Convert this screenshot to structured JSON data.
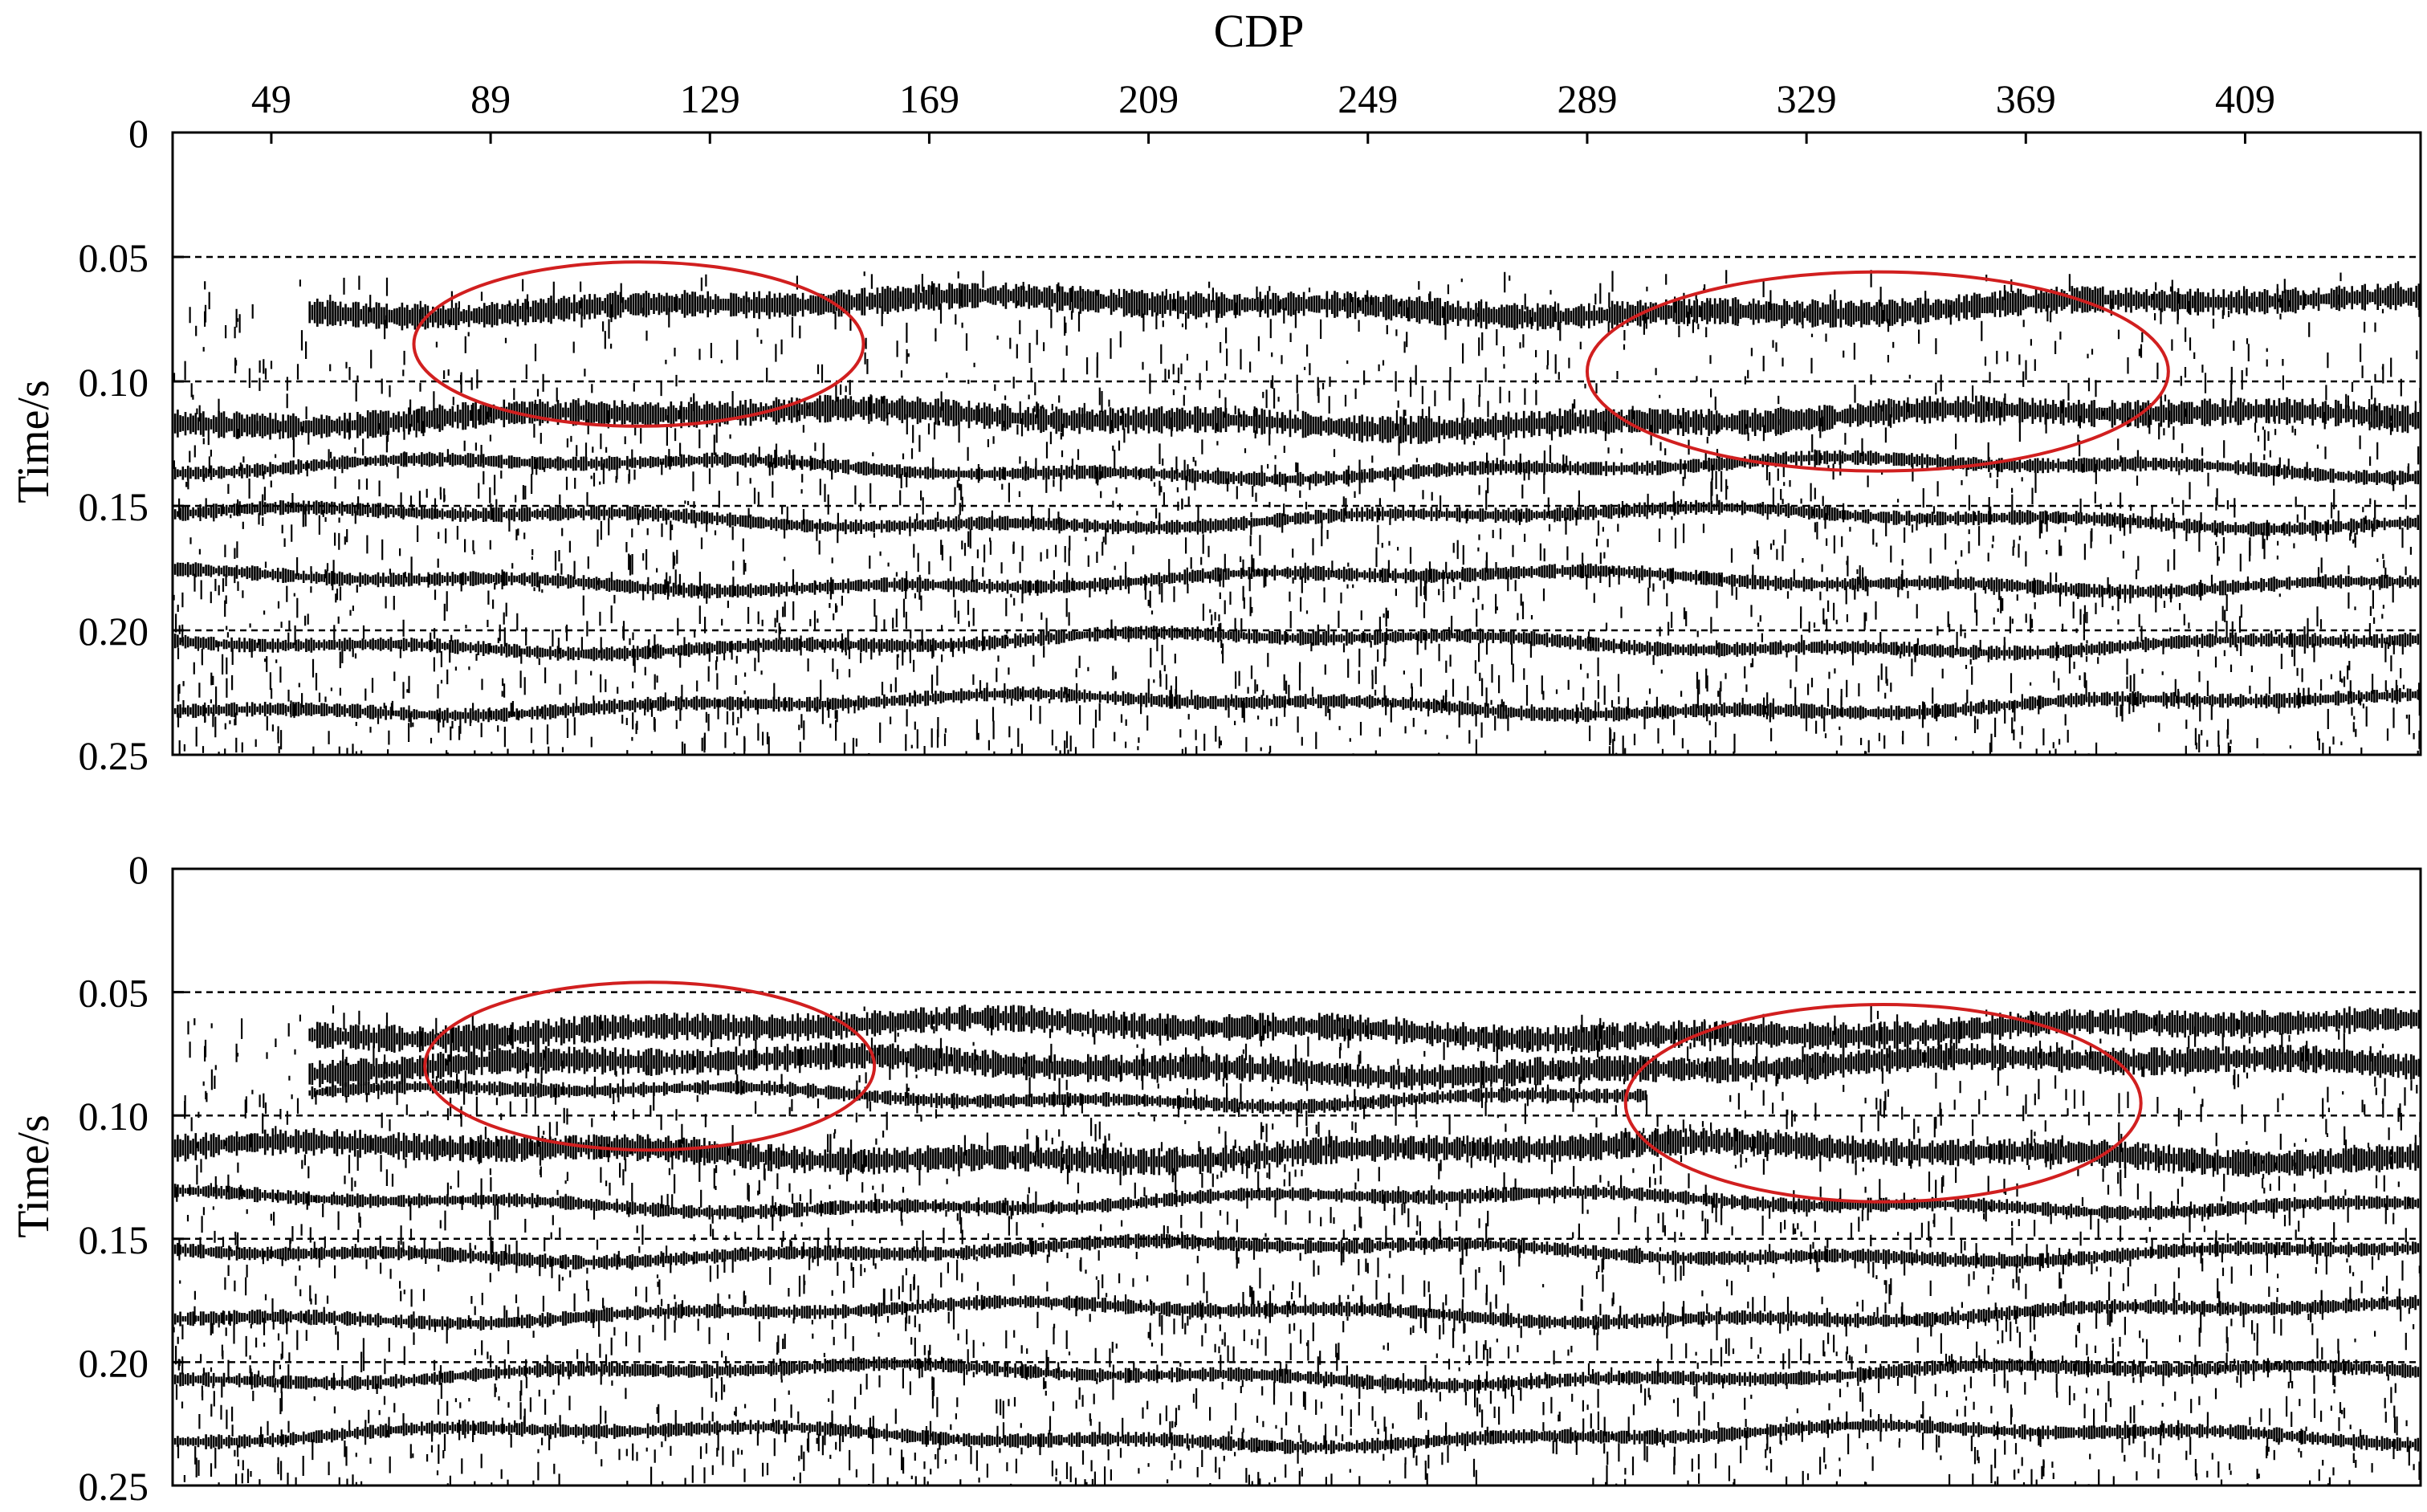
{
  "chart_data": [
    {
      "type": "heatmap",
      "panel": "top",
      "title": "",
      "xlabel": "CDP",
      "ylabel": "Time/s",
      "xticks": [
        49,
        89,
        129,
        169,
        209,
        249,
        289,
        329,
        369,
        409
      ],
      "xtick_labels": [
        "49",
        "89",
        "129",
        "169",
        "209",
        "249",
        "289",
        "329",
        "369",
        "409"
      ],
      "xlim": [
        31,
        441
      ],
      "yticks": [
        0,
        0.05,
        0.1,
        0.15,
        0.2,
        0.25
      ],
      "ytick_labels": [
        "0",
        "0.05",
        "0.10",
        "0.15",
        "0.20",
        "0.25"
      ],
      "ylim": [
        0,
        0.25
      ],
      "dashed_gridlines_y": [
        0.05,
        0.1,
        0.15,
        0.2,
        0.25
      ],
      "reflectors": [
        {
          "cdp_start": 56,
          "cdp_end": 441,
          "time": 0.07,
          "strength": "strong"
        },
        {
          "cdp_start": 31,
          "cdp_end": 441,
          "time": 0.115,
          "strength": "strong"
        },
        {
          "cdp_start": 31,
          "cdp_end": 441,
          "time": 0.135,
          "strength": "medium"
        },
        {
          "cdp_start": 31,
          "cdp_end": 441,
          "time": 0.155,
          "strength": "medium"
        },
        {
          "cdp_start": 31,
          "cdp_end": 441,
          "time": 0.18,
          "strength": "medium"
        },
        {
          "cdp_start": 31,
          "cdp_end": 441,
          "time": 0.205,
          "strength": "medium"
        },
        {
          "cdp_start": 31,
          "cdp_end": 441,
          "time": 0.23,
          "strength": "medium"
        }
      ],
      "annotations": [
        {
          "shape": "ellipse",
          "color": "#d11f1f",
          "cdp_center": 116,
          "time_center": 0.085,
          "cdp_halfwidth": 41,
          "time_halfwidth": 0.033
        },
        {
          "shape": "ellipse",
          "color": "#d11f1f",
          "cdp_center": 342,
          "time_center": 0.096,
          "cdp_halfwidth": 53,
          "time_halfwidth": 0.04
        }
      ]
    },
    {
      "type": "heatmap",
      "panel": "bottom",
      "title": "",
      "xlabel": "",
      "ylabel": "Time/s",
      "xlim": [
        31,
        441
      ],
      "yticks": [
        0,
        0.05,
        0.1,
        0.15,
        0.2,
        0.25
      ],
      "ytick_labels": [
        "0",
        "0.05",
        "0.10",
        "0.15",
        "0.20",
        "0.25"
      ],
      "ylim": [
        0,
        0.25
      ],
      "dashed_gridlines_y": [
        0.05,
        0.1,
        0.15,
        0.2,
        0.25
      ],
      "reflectors": [
        {
          "cdp_start": 56,
          "cdp_end": 441,
          "time": 0.065,
          "strength": "strong"
        },
        {
          "cdp_start": 56,
          "cdp_end": 441,
          "time": 0.08,
          "strength": "strong"
        },
        {
          "cdp_start": 56,
          "cdp_end": 300,
          "time": 0.092,
          "strength": "medium"
        },
        {
          "cdp_start": 31,
          "cdp_end": 441,
          "time": 0.115,
          "strength": "strong"
        },
        {
          "cdp_start": 31,
          "cdp_end": 441,
          "time": 0.135,
          "strength": "medium"
        },
        {
          "cdp_start": 31,
          "cdp_end": 441,
          "time": 0.155,
          "strength": "medium"
        },
        {
          "cdp_start": 31,
          "cdp_end": 441,
          "time": 0.18,
          "strength": "medium"
        },
        {
          "cdp_start": 31,
          "cdp_end": 441,
          "time": 0.205,
          "strength": "medium"
        },
        {
          "cdp_start": 31,
          "cdp_end": 441,
          "time": 0.23,
          "strength": "medium"
        }
      ],
      "annotations": [
        {
          "shape": "ellipse",
          "color": "#d11f1f",
          "cdp_center": 118,
          "time_center": 0.08,
          "cdp_halfwidth": 41,
          "time_halfwidth": 0.034
        },
        {
          "shape": "ellipse",
          "color": "#d11f1f",
          "cdp_center": 343,
          "time_center": 0.095,
          "cdp_halfwidth": 47,
          "time_halfwidth": 0.04
        }
      ]
    }
  ]
}
